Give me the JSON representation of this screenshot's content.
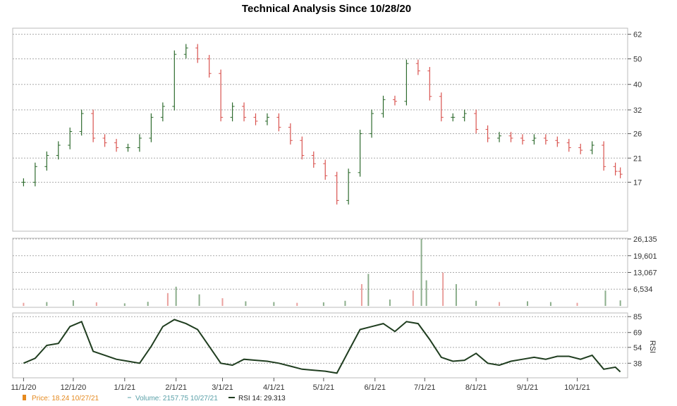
{
  "chart_data": {
    "type": "line",
    "title": "Technical Analysis Since 10/28/20",
    "x_tick_labels": [
      "11/1/20",
      "12/1/20",
      "1/1/21",
      "2/1/21",
      "3/1/21",
      "4/1/21",
      "5/1/21",
      "6/1/21",
      "7/1/21",
      "8/1/21",
      "9/1/21",
      "10/1/21"
    ],
    "price_panel": {
      "y_ticks": [
        62,
        50,
        40,
        32,
        26,
        21,
        17
      ],
      "ylim": [
        11.5,
        63
      ],
      "scale": "log",
      "grid": true,
      "series": [
        {
          "name": "Price",
          "kind": "ohlc",
          "points": [
            [
              "11/1/20",
              17.0
            ],
            [
              "11/8/20",
              19.5
            ],
            [
              "11/15/20",
              21.5
            ],
            [
              "11/22/20",
              23.5
            ],
            [
              "11/29/20",
              26.5
            ],
            [
              "12/6/20",
              31.0
            ],
            [
              "12/13/20",
              25.0
            ],
            [
              "12/20/20",
              24.0
            ],
            [
              "12/27/20",
              23.0
            ],
            [
              "1/3/21",
              23.0
            ],
            [
              "1/10/21",
              25.0
            ],
            [
              "1/17/21",
              30.0
            ],
            [
              "1/24/21",
              33.0
            ],
            [
              "1/31/21",
              52.0
            ],
            [
              "2/7/21",
              55.0
            ],
            [
              "2/14/21",
              50.0
            ],
            [
              "2/21/21",
              44.0
            ],
            [
              "2/28/21",
              30.0
            ],
            [
              "3/7/21",
              33.0
            ],
            [
              "3/14/21",
              30.0
            ],
            [
              "3/21/21",
              29.0
            ],
            [
              "3/28/21",
              30.0
            ],
            [
              "4/4/21",
              27.5
            ],
            [
              "4/11/21",
              24.5
            ],
            [
              "4/18/21",
              21.5
            ],
            [
              "4/25/21",
              20.0
            ],
            [
              "5/2/21",
              18.0
            ],
            [
              "5/9/21",
              14.5
            ],
            [
              "5/16/21",
              18.5
            ],
            [
              "5/23/21",
              26.0
            ],
            [
              "5/30/21",
              31.0
            ],
            [
              "6/6/21",
              35.0
            ],
            [
              "6/13/21",
              34.5
            ],
            [
              "6/20/21",
              48.0
            ],
            [
              "6/27/21",
              45.0
            ],
            [
              "7/4/21",
              36.0
            ],
            [
              "7/11/21",
              30.0
            ],
            [
              "7/18/21",
              30.0
            ],
            [
              "7/25/21",
              31.0
            ],
            [
              "8/1/21",
              27.0
            ],
            [
              "8/8/21",
              25.0
            ],
            [
              "8/15/21",
              25.5
            ],
            [
              "8/22/21",
              25.0
            ],
            [
              "8/29/21",
              24.5
            ],
            [
              "9/5/21",
              25.0
            ],
            [
              "9/12/21",
              24.5
            ],
            [
              "9/19/21",
              24.0
            ],
            [
              "9/26/21",
              23.0
            ],
            [
              "10/3/21",
              22.5
            ],
            [
              "10/10/21",
              23.5
            ],
            [
              "10/17/21",
              19.5
            ],
            [
              "10/24/21",
              18.7
            ],
            [
              "10/27/21",
              18.24
            ]
          ]
        }
      ]
    },
    "volume_panel": {
      "y_ticks": [
        "26,135",
        "19,601",
        "13,067",
        "6,534"
      ],
      "ylim": [
        0,
        26135
      ],
      "series": [
        {
          "name": "Volume",
          "kind": "bar",
          "points": [
            [
              "11/1/20",
              1200
            ],
            [
              "11/15/20",
              1500
            ],
            [
              "12/1/20",
              2200
            ],
            [
              "12/15/20",
              1400
            ],
            [
              "1/1/21",
              1000
            ],
            [
              "1/15/21",
              1600
            ],
            [
              "1/27/21",
              5000
            ],
            [
              "2/1/21",
              7500
            ],
            [
              "2/15/21",
              4500
            ],
            [
              "3/1/21",
              3000
            ],
            [
              "3/15/21",
              1800
            ],
            [
              "4/1/21",
              1500
            ],
            [
              "4/15/21",
              1200
            ],
            [
              "5/1/21",
              1400
            ],
            [
              "5/14/21",
              2000
            ],
            [
              "5/24/21",
              8500
            ],
            [
              "5/28/21",
              12500
            ],
            [
              "6/10/21",
              2500
            ],
            [
              "6/24/21",
              6000
            ],
            [
              "6/29/21",
              26135
            ],
            [
              "7/2/21",
              10000
            ],
            [
              "7/12/21",
              13000
            ],
            [
              "7/20/21",
              8500
            ],
            [
              "8/1/21",
              2000
            ],
            [
              "8/15/21",
              1500
            ],
            [
              "9/1/21",
              1800
            ],
            [
              "9/15/21",
              1500
            ],
            [
              "10/1/21",
              1200
            ],
            [
              "10/18/21",
              6000
            ],
            [
              "10/27/21",
              2157.75
            ]
          ]
        }
      ]
    },
    "rsi_panel": {
      "y_ticks": [
        85,
        69,
        54,
        38
      ],
      "ylim": [
        24,
        88
      ],
      "ylabel": "RSI",
      "series": [
        {
          "name": "RSI 14",
          "kind": "line",
          "points": [
            [
              "11/1/20",
              38
            ],
            [
              "11/8/20",
              43
            ],
            [
              "11/15/20",
              56
            ],
            [
              "11/22/20",
              58
            ],
            [
              "11/29/20",
              75
            ],
            [
              "12/6/20",
              80
            ],
            [
              "12/13/20",
              50
            ],
            [
              "12/20/20",
              46
            ],
            [
              "12/27/20",
              42
            ],
            [
              "1/3/21",
              40
            ],
            [
              "1/10/21",
              38
            ],
            [
              "1/17/21",
              55
            ],
            [
              "1/24/21",
              75
            ],
            [
              "1/31/21",
              82
            ],
            [
              "2/7/21",
              78
            ],
            [
              "2/14/21",
              72
            ],
            [
              "2/21/21",
              55
            ],
            [
              "2/28/21",
              38
            ],
            [
              "3/7/21",
              36
            ],
            [
              "3/14/21",
              42
            ],
            [
              "3/21/21",
              41
            ],
            [
              "3/28/21",
              40
            ],
            [
              "4/4/21",
              38
            ],
            [
              "4/11/21",
              35
            ],
            [
              "4/18/21",
              32
            ],
            [
              "4/25/21",
              31
            ],
            [
              "5/2/21",
              30
            ],
            [
              "5/9/21",
              28
            ],
            [
              "5/16/21",
              50
            ],
            [
              "5/23/21",
              72
            ],
            [
              "5/30/21",
              75
            ],
            [
              "6/6/21",
              78
            ],
            [
              "6/13/21",
              70
            ],
            [
              "6/20/21",
              80
            ],
            [
              "6/27/21",
              78
            ],
            [
              "7/4/21",
              62
            ],
            [
              "7/11/21",
              44
            ],
            [
              "7/18/21",
              40
            ],
            [
              "7/25/21",
              41
            ],
            [
              "8/1/21",
              48
            ],
            [
              "8/8/21",
              38
            ],
            [
              "8/15/21",
              36
            ],
            [
              "8/22/21",
              40
            ],
            [
              "8/29/21",
              42
            ],
            [
              "9/5/21",
              44
            ],
            [
              "9/12/21",
              42
            ],
            [
              "9/19/21",
              45
            ],
            [
              "9/26/21",
              45
            ],
            [
              "10/3/21",
              42
            ],
            [
              "10/10/21",
              46
            ],
            [
              "10/17/21",
              32
            ],
            [
              "10/24/21",
              34
            ],
            [
              "10/27/21",
              29.313
            ]
          ]
        }
      ]
    },
    "grid": true,
    "legend_position": "bottom-left"
  },
  "legend": {
    "price_label": "Price: 18.24  10/27/21",
    "volume_label": "Volume: 2157.75  10/27/21",
    "rsi_label": "RSI 14: 29.313"
  },
  "colors": {
    "up": "#2e6b2e",
    "down": "#d9534f",
    "rsi_line": "#1f3d1f",
    "price_legend": "#e58a1f",
    "volume_legend": "#5aa0a8",
    "grid": "#aaaaaa"
  }
}
